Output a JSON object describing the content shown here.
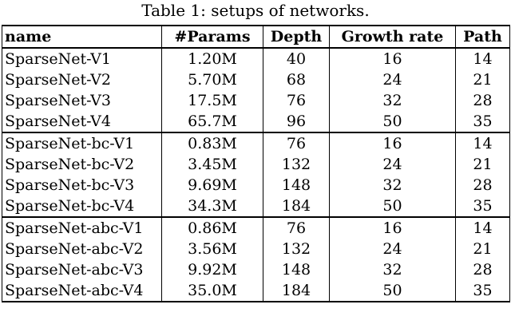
{
  "caption": "Table 1: setups of networks.",
  "headers": [
    "name",
    "#Params",
    "Depth",
    "Growth rate",
    "Path"
  ],
  "groups": [
    [
      [
        "SparseNet-V1",
        "1.20M",
        "40",
        "16",
        "14"
      ],
      [
        "SparseNet-V2",
        "5.70M",
        "68",
        "24",
        "21"
      ],
      [
        "SparseNet-V3",
        "17.5M",
        "76",
        "32",
        "28"
      ],
      [
        "SparseNet-V4",
        "65.7M",
        "96",
        "50",
        "35"
      ]
    ],
    [
      [
        "SparseNet-bc-V1",
        "0.83M",
        "76",
        "16",
        "14"
      ],
      [
        "SparseNet-bc-V2",
        "3.45M",
        "132",
        "24",
        "21"
      ],
      [
        "SparseNet-bc-V3",
        "9.69M",
        "148",
        "32",
        "28"
      ],
      [
        "SparseNet-bc-V4",
        "34.3M",
        "184",
        "50",
        "35"
      ]
    ],
    [
      [
        "SparseNet-abc-V1",
        "0.86M",
        "76",
        "16",
        "14"
      ],
      [
        "SparseNet-abc-V2",
        "3.56M",
        "132",
        "24",
        "21"
      ],
      [
        "SparseNet-abc-V3",
        "9.92M",
        "148",
        "32",
        "28"
      ],
      [
        "SparseNet-abc-V4",
        "35.0M",
        "184",
        "50",
        "35"
      ]
    ]
  ]
}
